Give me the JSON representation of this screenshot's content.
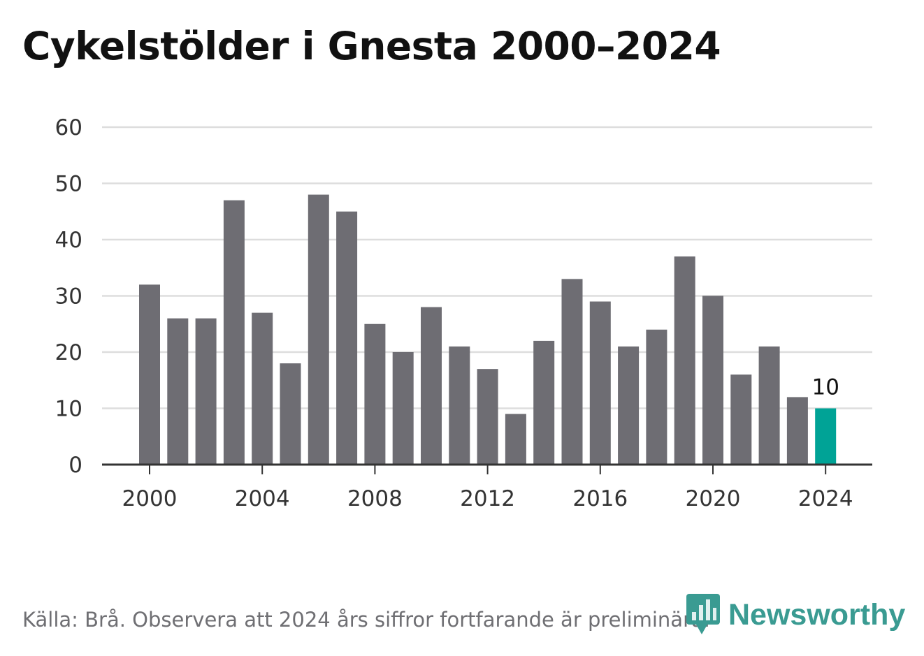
{
  "title": "Cykelstölder i Gnesta 2000–2024",
  "source": "Källa: Brå. Observera att 2024 års siffror fortfarande är preliminära.",
  "brand": {
    "name": "Newsworthy",
    "icon": "newsworthy-logo-icon",
    "color": "#3a9b92"
  },
  "colors": {
    "bar": "#6e6d73",
    "highlight": "#00a396",
    "grid": "#dddddd",
    "axis": "#333333",
    "text": "#333333"
  },
  "chart_data": {
    "type": "bar",
    "title": "Cykelstölder i Gnesta 2000–2024",
    "xlabel": "",
    "ylabel": "",
    "ylim": [
      0,
      60
    ],
    "yticks": [
      0,
      10,
      20,
      30,
      40,
      50,
      60
    ],
    "xticks": [
      2000,
      2004,
      2008,
      2012,
      2016,
      2020,
      2024
    ],
    "grid": true,
    "categories": [
      2000,
      2001,
      2002,
      2003,
      2004,
      2005,
      2006,
      2007,
      2008,
      2009,
      2010,
      2011,
      2012,
      2013,
      2014,
      2015,
      2016,
      2017,
      2018,
      2019,
      2020,
      2021,
      2022,
      2023,
      2024
    ],
    "values": [
      32,
      26,
      26,
      47,
      27,
      18,
      48,
      45,
      25,
      20,
      28,
      21,
      17,
      9,
      22,
      33,
      29,
      21,
      24,
      37,
      30,
      16,
      21,
      12,
      10
    ],
    "highlight": {
      "category": 2024,
      "label": "10"
    }
  }
}
